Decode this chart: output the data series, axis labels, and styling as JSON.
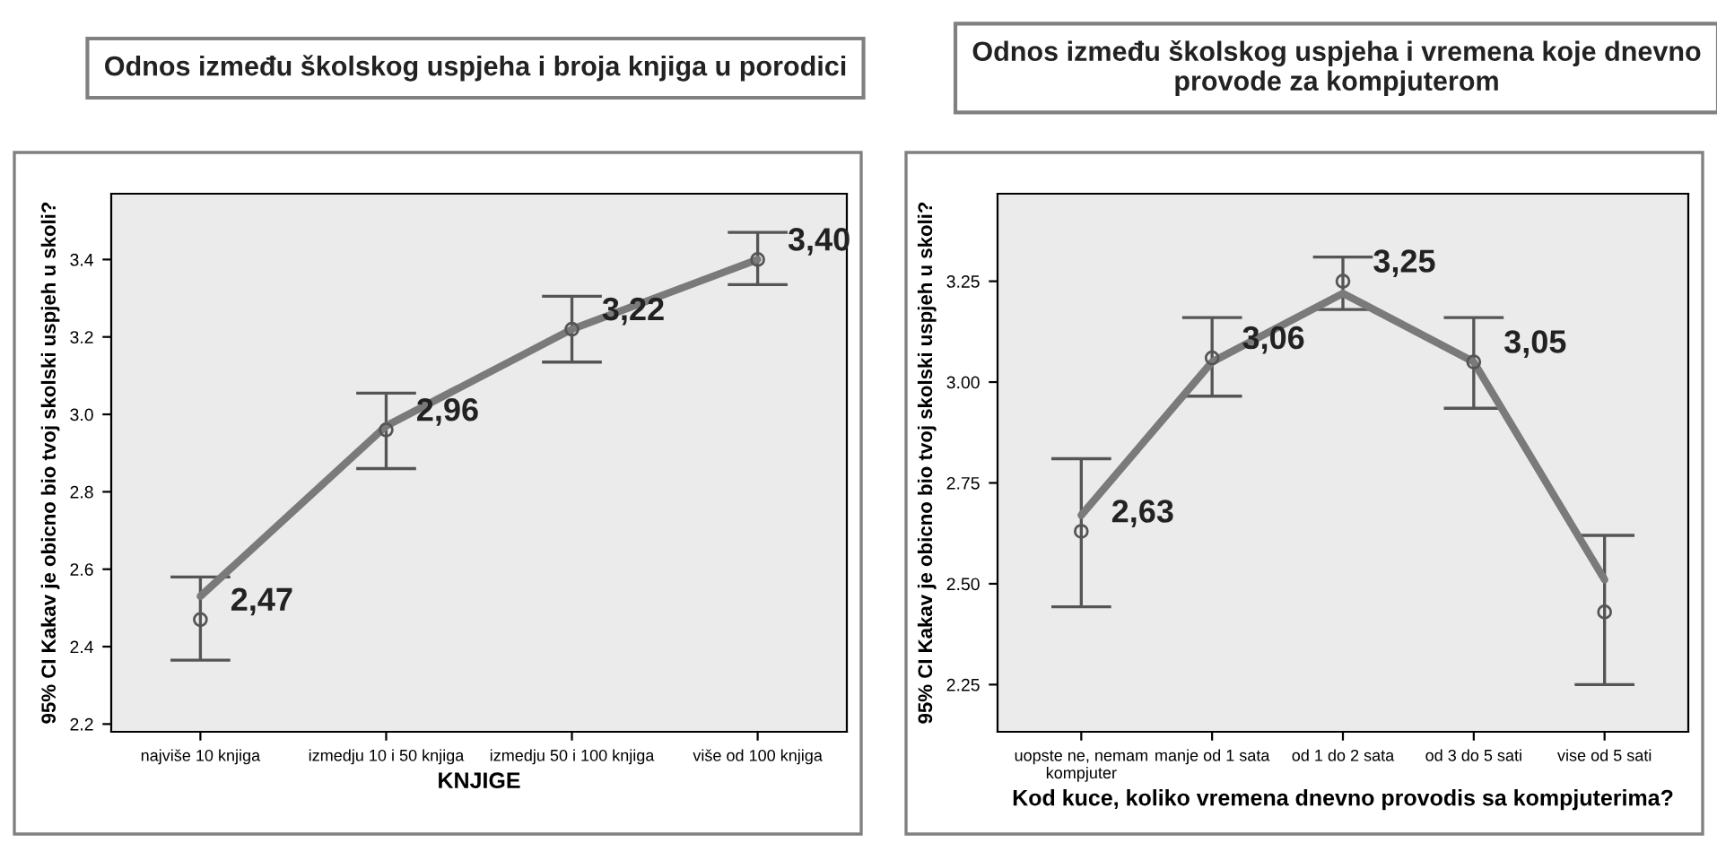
{
  "chart_data": [
    {
      "type": "scatter",
      "title": "Odnos između školskog uspjeha i broja knjiga u porodici",
      "xlabel": "KNJIGE",
      "ylabel": "95% CI Kakav je obicno bio tvoj skolski uspjeh u skoli?",
      "categories": [
        "najviše 10 knjiga",
        "izmedju 10 i 50 knjiga",
        "izmedju 50 i 100 knjiga",
        "više od 100 knjiga"
      ],
      "ylim": [
        2.18,
        3.57
      ],
      "yticks": [
        {
          "value": 2.2,
          "label": "2.2"
        },
        {
          "value": 2.4,
          "label": "2.4"
        },
        {
          "value": 2.6,
          "label": "2.6"
        },
        {
          "value": 2.8,
          "label": "2.8"
        },
        {
          "value": 3.0,
          "label": "3.0"
        },
        {
          "value": 3.2,
          "label": "3.2"
        },
        {
          "value": 3.4,
          "label": "3.4"
        }
      ],
      "grid": false,
      "series": [
        {
          "values": [
            2.47,
            2.96,
            3.22,
            3.4
          ],
          "errors": [
            [
              2.365,
              2.58
            ],
            [
              2.86,
              3.055
            ],
            [
              3.135,
              3.305
            ],
            [
              3.335,
              3.47
            ]
          ],
          "value_labels": [
            "2,47",
            "2,96",
            "3,22",
            "3,40"
          ],
          "color": "#555555",
          "marker": "circle"
        },
        {
          "type": "line",
          "values": [
            2.53,
            2.97,
            3.22,
            3.4
          ],
          "color": "#7a7a7a"
        }
      ]
    },
    {
      "type": "scatter",
      "title": "Odnos između školskog uspjeha i vremena koje dnevno provode za kompjuterom",
      "xlabel": "Kod kuce, koliko vremena dnevno provodis sa kompjuterima?",
      "ylabel": "95% CI Kakav je obicno bio tvoj skolski uspjeh u skoli?",
      "categories": [
        "uopste ne, nemam\nkompjuter",
        "manje od 1 sata",
        "od 1 do 2 sata",
        "od 3 do 5 sati",
        "vise od 5 sati"
      ],
      "ylim": [
        2.133,
        3.467
      ],
      "yticks": [
        {
          "value": 2.25,
          "label": "2.25"
        },
        {
          "value": 2.5,
          "label": "2.50"
        },
        {
          "value": 2.75,
          "label": "2.75"
        },
        {
          "value": 3.0,
          "label": "3.00"
        },
        {
          "value": 3.25,
          "label": "3.25"
        }
      ],
      "grid": false,
      "series": [
        {
          "values": [
            2.63,
            3.06,
            3.25,
            3.05,
            2.43
          ],
          "errors": [
            [
              2.443,
              2.81
            ],
            [
              2.965,
              3.16
            ],
            [
              3.18,
              3.31
            ],
            [
              2.935,
              3.16
            ],
            [
              2.25,
              2.62
            ]
          ],
          "value_labels": [
            "2,63",
            "3,06",
            "3,25",
            "3,05",
            null
          ],
          "color": "#555555",
          "marker": "circle"
        },
        {
          "type": "line",
          "values": [
            2.67,
            3.05,
            3.22,
            3.05,
            2.51
          ],
          "color": "#7a7a7a"
        }
      ]
    }
  ]
}
